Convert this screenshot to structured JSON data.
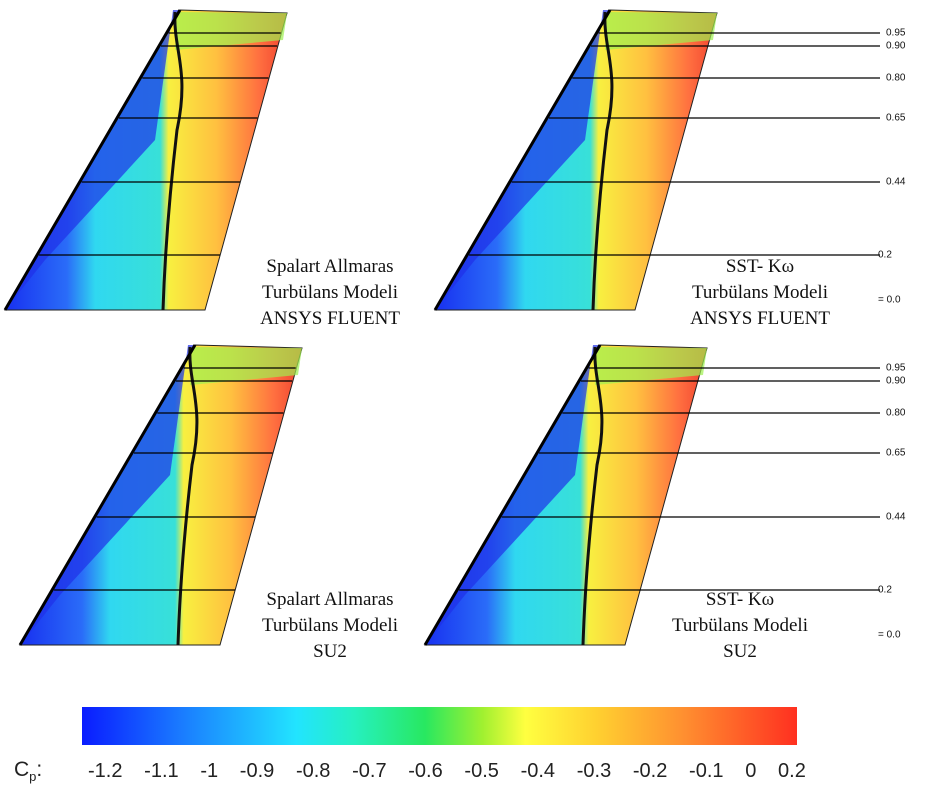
{
  "panels": [
    {
      "caption": [
        "Spalart Allmaras",
        "Turbülans Modeli",
        "ANSYS FLUENT"
      ]
    },
    {
      "caption": [
        "SST- Kω",
        "Turbülans Modeli",
        "ANSYS FLUENT"
      ]
    },
    {
      "caption": [
        "Spalart Allmaras",
        "Turbülans Modeli",
        "SU2"
      ]
    },
    {
      "caption": [
        "SST- Kω",
        "Turbülans Modeli",
        "SU2"
      ]
    }
  ],
  "span_labels": [
    "0.95",
    "0.90",
    "0.80",
    "0.65",
    "0.44",
    "0.2",
    "= 0.0"
  ],
  "colorbar": {
    "label": "C",
    "label_sub": "p",
    "ticks": [
      "-1.2",
      "-1.1",
      "-1",
      "-0.9",
      "-0.8",
      "-0.7",
      "-0.6",
      "-0.5",
      "-0.4",
      "-0.3",
      "-0.2",
      "-0.1",
      "0",
      "0.2"
    ]
  }
}
